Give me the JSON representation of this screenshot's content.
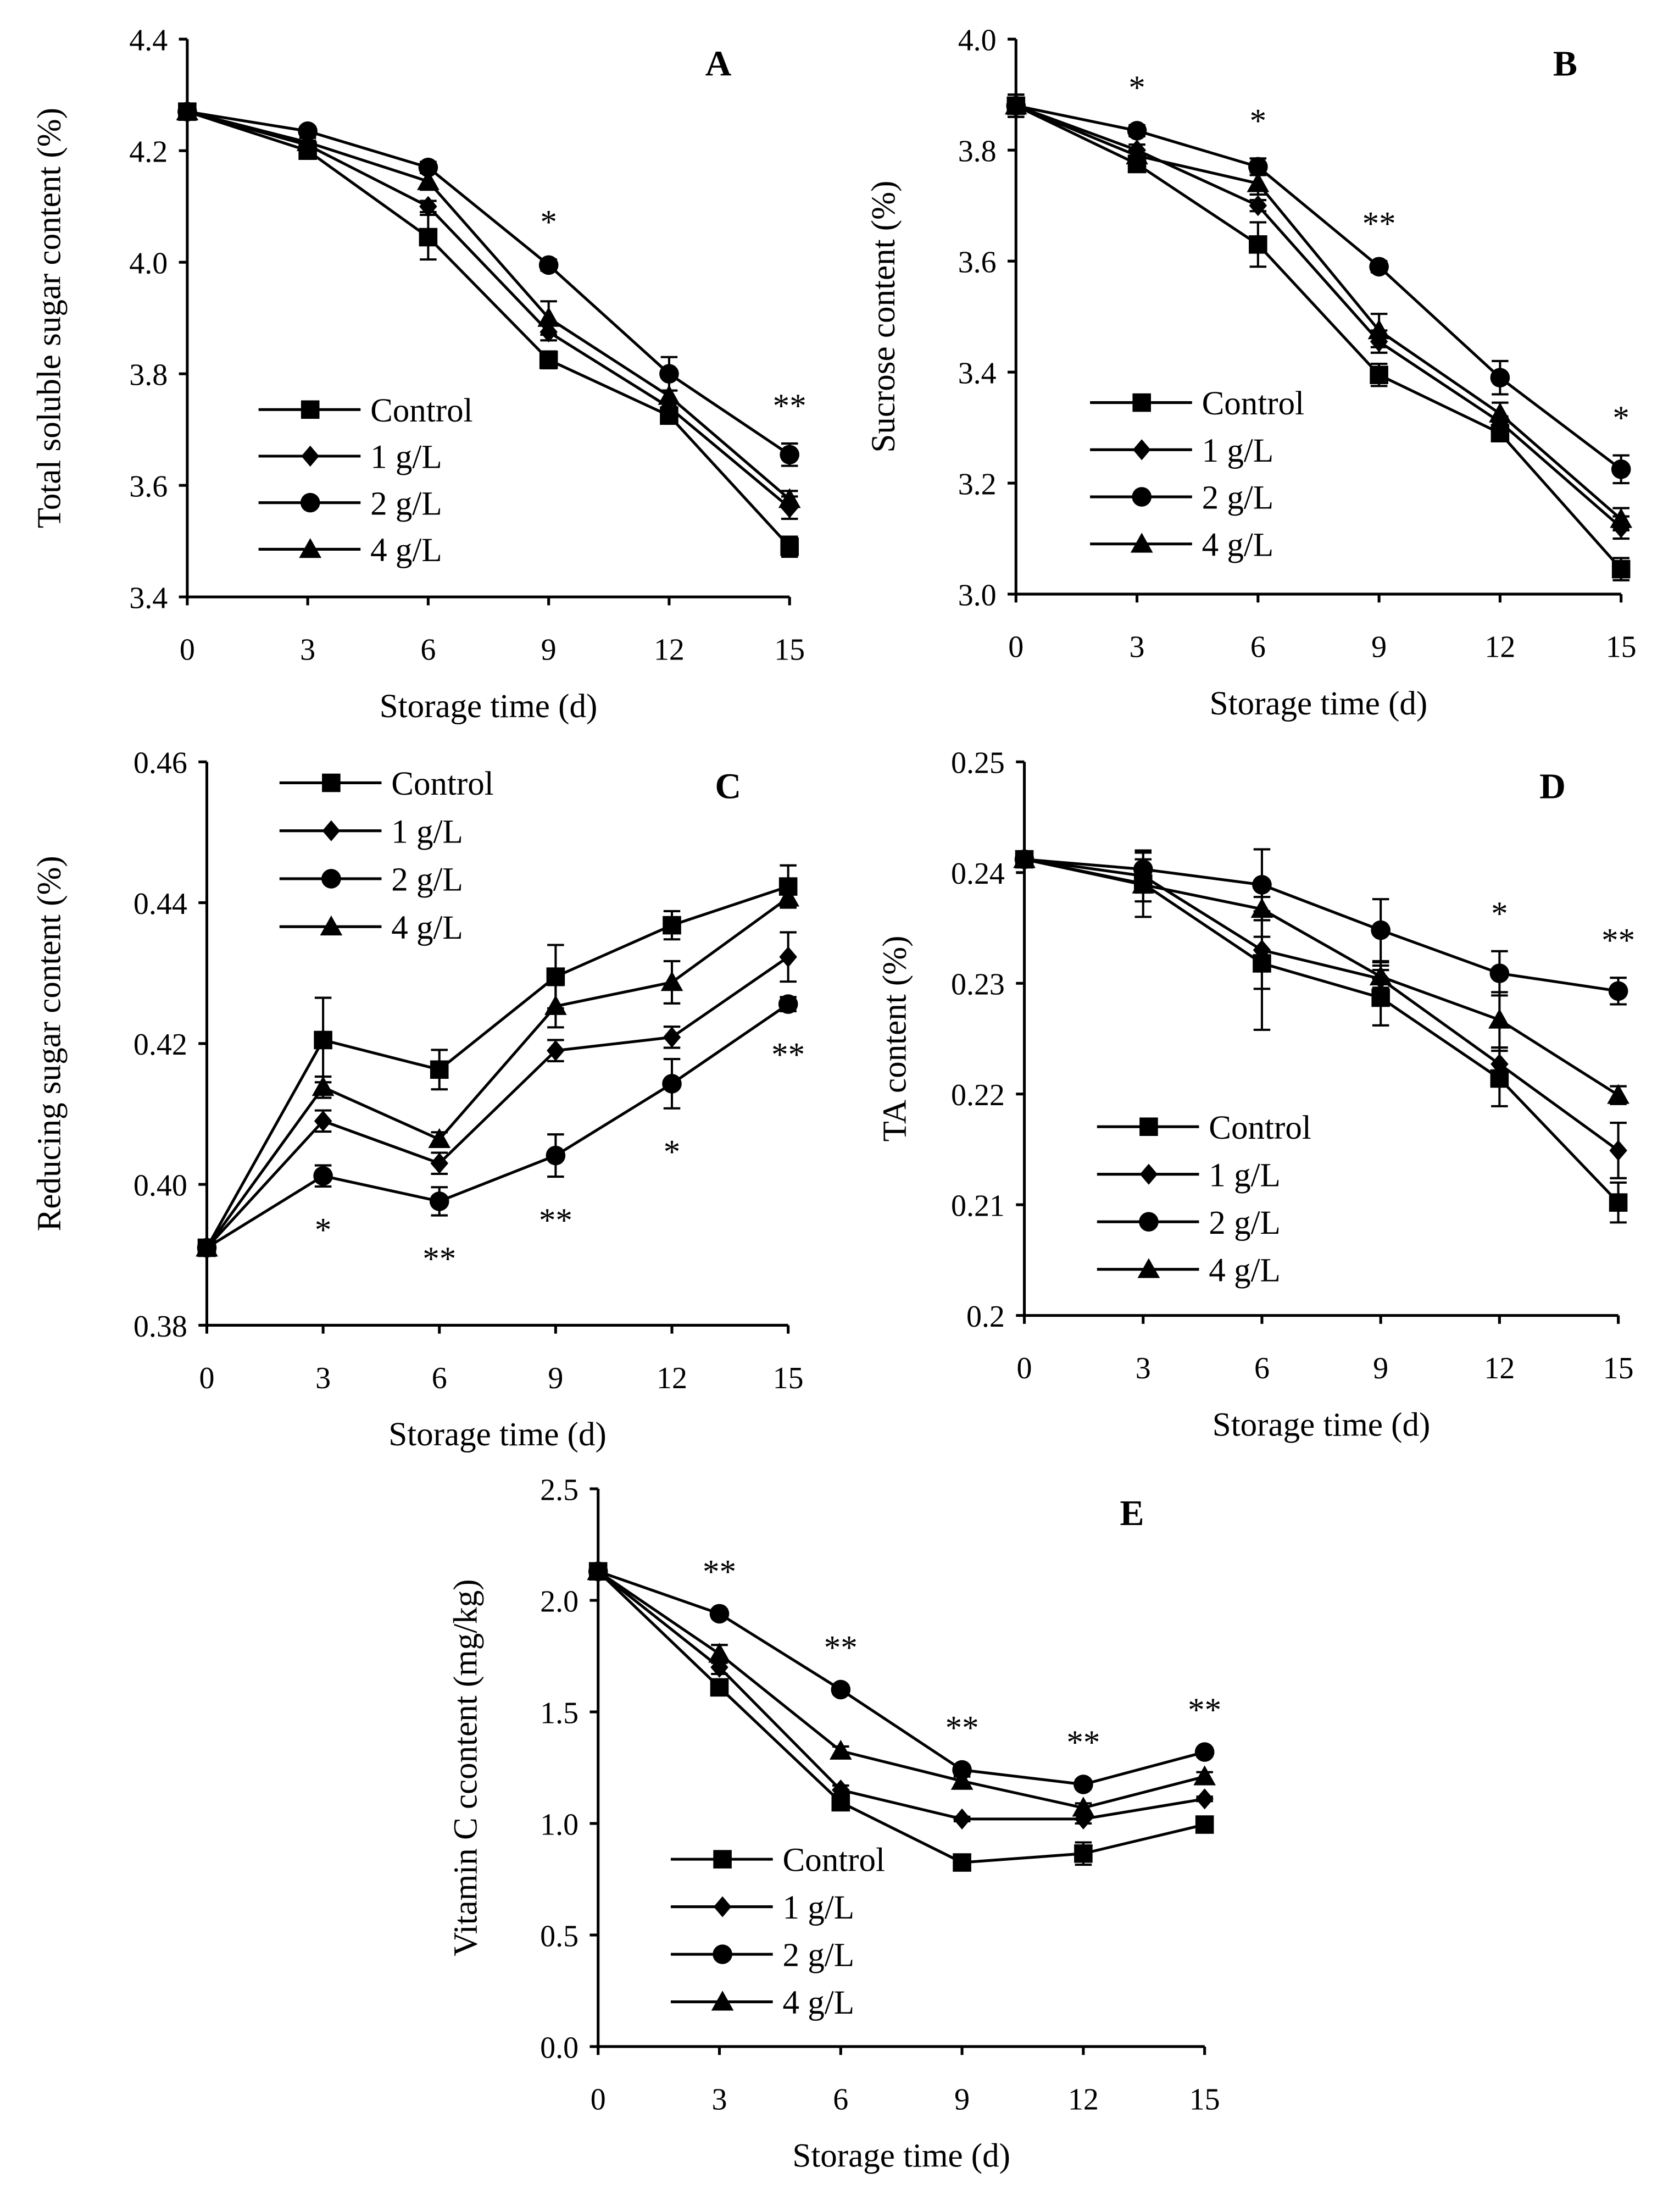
{
  "style": {
    "ink": "#000000",
    "background": "#ffffff"
  },
  "chart_data": [
    {
      "panel_label": "A",
      "type": "line",
      "xlabel": "Storage time (d)",
      "ylabel": "Total soluble sugar content (%)",
      "x": [
        0,
        3,
        6,
        9,
        12,
        15
      ],
      "x_tick_labels": [
        "0",
        "3",
        "6",
        "9",
        "12",
        "15"
      ],
      "xlim": [
        0,
        15
      ],
      "ylim": [
        3.4,
        4.4
      ],
      "y_tick_values": [
        3.4,
        3.6,
        3.8,
        4.0,
        4.2,
        4.4
      ],
      "y_tick_labels": [
        "3.4",
        "3.6",
        "3.8",
        "4.0",
        "4.2",
        "4.4"
      ],
      "grid": false,
      "legend_position": "lower-left",
      "series": [
        {
          "name": "Control",
          "marker": "square",
          "values": [
            4.27,
            4.2,
            4.045,
            3.825,
            3.725,
            3.49
          ],
          "errors": [
            0.005,
            0.008,
            0.04,
            0.015,
            0.008,
            0.018
          ]
        },
        {
          "name": "1 g/L",
          "marker": "diamond",
          "values": [
            4.27,
            4.21,
            4.1,
            3.875,
            3.74,
            3.56
          ],
          "errors": [
            0.005,
            0.008,
            0.01,
            0.015,
            0.01,
            0.02
          ]
        },
        {
          "name": "2 g/L",
          "marker": "circle",
          "values": [
            4.27,
            4.235,
            4.17,
            3.995,
            3.8,
            3.655
          ],
          "errors": [
            0.005,
            0.008,
            0.01,
            0.01,
            0.03,
            0.02
          ]
        },
        {
          "name": "4 g/L",
          "marker": "triangle",
          "values": [
            4.27,
            4.215,
            4.145,
            3.9,
            3.76,
            3.575
          ],
          "errors": [
            0.005,
            0.008,
            0.015,
            0.03,
            0.01,
            0.015
          ]
        }
      ],
      "annotations_below": false,
      "annotations": [
        {
          "x": 9,
          "text": "*"
        },
        {
          "x": 15,
          "text": "**"
        }
      ]
    },
    {
      "panel_label": "B",
      "type": "line",
      "xlabel": "Storage time (d)",
      "ylabel": "Sucrose content (%)",
      "x": [
        0,
        3,
        6,
        9,
        12,
        15
      ],
      "x_tick_labels": [
        "0",
        "3",
        "6",
        "9",
        "12",
        "15"
      ],
      "xlim": [
        0,
        15
      ],
      "ylim": [
        3.0,
        4.0
      ],
      "y_tick_values": [
        3.0,
        3.2,
        3.4,
        3.6,
        3.8,
        4.0
      ],
      "y_tick_labels": [
        "3.0",
        "3.2",
        "3.4",
        "3.6",
        "3.8",
        "4.0"
      ],
      "grid": false,
      "legend_position": "lower-left",
      "series": [
        {
          "name": "Control",
          "marker": "square",
          "values": [
            3.88,
            3.775,
            3.63,
            3.395,
            3.29,
            3.045
          ],
          "errors": [
            0.02,
            0.01,
            0.04,
            0.02,
            0.01,
            0.02
          ]
        },
        {
          "name": "1 g/L",
          "marker": "diamond",
          "values": [
            3.88,
            3.8,
            3.7,
            3.455,
            3.31,
            3.12
          ],
          "errors": [
            0.02,
            0.01,
            0.01,
            0.02,
            0.01,
            0.02
          ]
        },
        {
          "name": "2 g/L",
          "marker": "circle",
          "values": [
            3.88,
            3.835,
            3.77,
            3.59,
            3.39,
            3.225
          ],
          "errors": [
            0.02,
            0.01,
            0.015,
            0.01,
            0.03,
            0.025
          ]
        },
        {
          "name": "4 g/L",
          "marker": "triangle",
          "values": [
            3.88,
            3.79,
            3.74,
            3.475,
            3.325,
            3.135
          ],
          "errors": [
            0.02,
            0.01,
            0.02,
            0.03,
            0.02,
            0.02
          ]
        }
      ],
      "annotations_below": false,
      "annotations": [
        {
          "x": 3,
          "text": "*"
        },
        {
          "x": 6,
          "text": "*"
        },
        {
          "x": 9,
          "text": "**"
        },
        {
          "x": 15,
          "text": "*"
        }
      ]
    },
    {
      "panel_label": "C",
      "type": "line",
      "xlabel": "Storage time (d)",
      "ylabel": "Reducing sugar content (%)",
      "x": [
        0,
        3,
        6,
        9,
        12,
        15
      ],
      "x_tick_labels": [
        "0",
        "3",
        "6",
        "9",
        "12",
        "15"
      ],
      "xlim": [
        0,
        15
      ],
      "ylim": [
        0.38,
        0.46
      ],
      "y_tick_values": [
        0.38,
        0.4,
        0.42,
        0.44,
        0.46
      ],
      "y_tick_labels": [
        "0.38",
        "0.40",
        "0.42",
        "0.44",
        "0.46"
      ],
      "grid": false,
      "legend_position": "upper-left",
      "series": [
        {
          "name": "Control",
          "marker": "square",
          "values": [
            0.391,
            0.4205,
            0.4163,
            0.4295,
            0.4368,
            0.4423
          ],
          "errors": [
            0.0005,
            0.006,
            0.0028,
            0.0045,
            0.002,
            0.003
          ]
        },
        {
          "name": "1 g/L",
          "marker": "diamond",
          "values": [
            0.391,
            0.409,
            0.403,
            0.419,
            0.4209,
            0.4323
          ],
          "errors": [
            0.0005,
            0.0015,
            0.0015,
            0.0015,
            0.0015,
            0.0035
          ]
        },
        {
          "name": "2 g/L",
          "marker": "circle",
          "values": [
            0.391,
            0.4012,
            0.3976,
            0.4041,
            0.4143,
            0.4256
          ],
          "errors": [
            0.0005,
            0.0015,
            0.002,
            0.003,
            0.0035,
            0.001
          ]
        },
        {
          "name": "4 g/L",
          "marker": "triangle",
          "values": [
            0.391,
            0.4138,
            0.4064,
            0.4253,
            0.4287,
            0.4407
          ],
          "errors": [
            0.0005,
            0.0015,
            0.001,
            0.003,
            0.003,
            0.001
          ]
        }
      ],
      "annotations_below": true,
      "annotations": [
        {
          "x": 3,
          "text": "*"
        },
        {
          "x": 6,
          "text": "**"
        },
        {
          "x": 9,
          "text": "**"
        },
        {
          "x": 12,
          "text": "*"
        },
        {
          "x": 15,
          "text": "**"
        }
      ]
    },
    {
      "panel_label": "D",
      "type": "line",
      "xlabel": "Storage time (d)",
      "ylabel": "TA content (%)",
      "x": [
        0,
        3,
        6,
        9,
        12,
        15
      ],
      "x_tick_labels": [
        "0",
        "3",
        "6",
        "9",
        "12",
        "15"
      ],
      "xlim": [
        0,
        15
      ],
      "ylim": [
        0.2,
        0.25
      ],
      "y_tick_values": [
        0.2,
        0.21,
        0.22,
        0.23,
        0.24,
        0.25
      ],
      "y_tick_labels": [
        "0.2",
        "0.21",
        "0.22",
        "0.23",
        "0.24",
        "0.25"
      ],
      "grid": false,
      "legend_position": "lower-left",
      "series": [
        {
          "name": "Control",
          "marker": "square",
          "values": [
            0.2412,
            0.239,
            0.2318,
            0.2287,
            0.2214,
            0.2102
          ],
          "errors": [
            0.0005,
            0.003,
            0.006,
            0.0025,
            0.0025,
            0.0018
          ]
        },
        {
          "name": "1 g/L",
          "marker": "diamond",
          "values": [
            0.2412,
            0.2397,
            0.233,
            0.2304,
            0.2227,
            0.2149
          ],
          "errors": [
            0.0005,
            0.0015,
            0.0035,
            0.0015,
            0.0015,
            0.0025
          ]
        },
        {
          "name": "2 g/L",
          "marker": "circle",
          "values": [
            0.2412,
            0.2403,
            0.2389,
            0.2348,
            0.2309,
            0.2293
          ],
          "errors": [
            0.0005,
            0.0015,
            0.0032,
            0.0028,
            0.002,
            0.0012
          ]
        },
        {
          "name": "4 g/L",
          "marker": "triangle",
          "values": [
            0.2412,
            0.2389,
            0.2367,
            0.2306,
            0.2267,
            0.2199
          ],
          "errors": [
            0.0005,
            0.0015,
            0.0025,
            0.001,
            0.0025,
            0.0008
          ]
        }
      ],
      "annotations_below": false,
      "annotations": [
        {
          "x": 12,
          "text": "*"
        },
        {
          "x": 15,
          "text": "**"
        }
      ]
    },
    {
      "panel_label": "E",
      "type": "line",
      "xlabel": "Storage time (d)",
      "ylabel": "Vitamin C ccontent (mg/kg)",
      "x": [
        0,
        3,
        6,
        9,
        12,
        15
      ],
      "x_tick_labels": [
        "0",
        "3",
        "6",
        "9",
        "12",
        "15"
      ],
      "xlim": [
        0,
        15
      ],
      "ylim": [
        0.0,
        2.5
      ],
      "y_tick_values": [
        0.0,
        0.5,
        1.0,
        1.5,
        2.0,
        2.5
      ],
      "y_tick_labels": [
        "0.0",
        "0.5",
        "1.0",
        "1.5",
        "2.0",
        "2.5"
      ],
      "grid": false,
      "legend_position": "lower-left",
      "series": [
        {
          "name": "Control",
          "marker": "square",
          "values": [
            2.13,
            1.61,
            1.095,
            0.825,
            0.865,
            0.995
          ],
          "errors": [
            0.02,
            0.03,
            0.02,
            0.02,
            0.05,
            0.02
          ]
        },
        {
          "name": "1 g/L",
          "marker": "diamond",
          "values": [
            2.13,
            1.7,
            1.15,
            1.02,
            1.02,
            1.11
          ],
          "errors": [
            0.02,
            0.03,
            0.02,
            0.01,
            0.02,
            0.01
          ]
        },
        {
          "name": "2 g/L",
          "marker": "circle",
          "values": [
            2.13,
            1.94,
            1.6,
            1.24,
            1.175,
            1.32
          ],
          "errors": [
            0.02,
            0.02,
            0.02,
            0.02,
            0.02,
            0.02
          ]
        },
        {
          "name": "4 g/L",
          "marker": "triangle",
          "values": [
            2.13,
            1.76,
            1.325,
            1.19,
            1.07,
            1.21
          ],
          "errors": [
            0.02,
            0.04,
            0.02,
            0.02,
            0.02,
            0.02
          ]
        }
      ],
      "annotations_below": false,
      "annotations": [
        {
          "x": 3,
          "text": "**"
        },
        {
          "x": 6,
          "text": "**"
        },
        {
          "x": 9,
          "text": "**"
        },
        {
          "x": 12,
          "text": "**"
        },
        {
          "x": 15,
          "text": "**"
        }
      ]
    }
  ]
}
